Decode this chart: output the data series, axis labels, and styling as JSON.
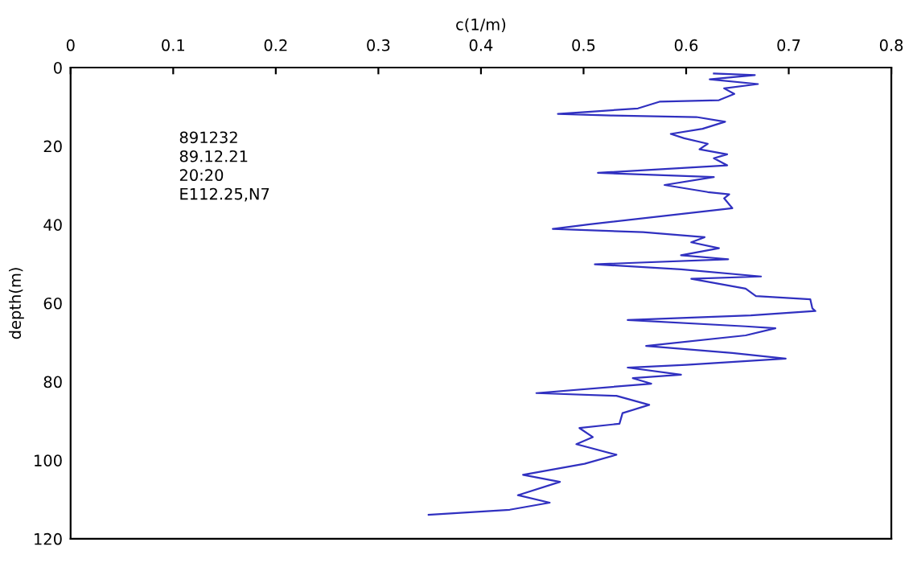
{
  "chart_data": {
    "type": "line",
    "xlabel": "c(1/m)",
    "ylabel": "depth(m)",
    "annotations": [
      "891232",
      "89.12.21",
      "20:20",
      "E112.25,N7"
    ],
    "xlim": [
      0,
      0.8
    ],
    "xticks": [
      {
        "value": 0,
        "label": "0"
      },
      0.1,
      0.2,
      0.3,
      0.4,
      0.5,
      0.6,
      0.7,
      0.8
    ],
    "ylim": [
      120,
      0
    ],
    "yticks": [
      0,
      20,
      40,
      60,
      80,
      100,
      120
    ],
    "grid": false,
    "legend": false,
    "marker": "none",
    "line_style": "solid",
    "series": [
      {
        "color": "#3030c0",
        "x": [
          0.627,
          0.667,
          0.623,
          0.67,
          0.637,
          0.647,
          0.632,
          0.574,
          0.553,
          0.475,
          0.527,
          0.61,
          0.638,
          0.616,
          0.585,
          0.598,
          0.621,
          0.613,
          0.64,
          0.627,
          0.64,
          0.514,
          0.627,
          0.579,
          0.621,
          0.642,
          0.637,
          0.645,
          0.506,
          0.47,
          0.558,
          0.618,
          0.605,
          0.632,
          0.595,
          0.641,
          0.511,
          0.595,
          0.673,
          0.605,
          0.658,
          0.668,
          0.721,
          0.723,
          0.726,
          0.663,
          0.543,
          0.658,
          0.687,
          0.658,
          0.561,
          0.645,
          0.697,
          0.6,
          0.543,
          0.595,
          0.548,
          0.566,
          0.454,
          0.532,
          0.564,
          0.538,
          0.535,
          0.496,
          0.509,
          0.493,
          0.532,
          0.501,
          0.441,
          0.477,
          0.436,
          0.467,
          0.428,
          0.349
        ],
        "values": [
          1.5,
          1.9,
          3.0,
          4.2,
          5.3,
          6.7,
          8.3,
          8.7,
          10.4,
          11.8,
          12.2,
          12.6,
          13.8,
          15.6,
          16.9,
          18.0,
          19.4,
          20.8,
          22.1,
          23.1,
          24.9,
          26.8,
          27.9,
          29.9,
          31.7,
          32.3,
          33.3,
          35.8,
          39.9,
          41.1,
          41.9,
          43.2,
          44.5,
          46.0,
          47.8,
          48.8,
          50.1,
          51.4,
          53.2,
          53.8,
          56.3,
          58.2,
          59.0,
          61.3,
          62.0,
          63.1,
          64.3,
          65.9,
          66.4,
          68.2,
          70.9,
          72.7,
          74.1,
          75.7,
          76.4,
          78.2,
          79.1,
          80.5,
          82.9,
          83.6,
          85.9,
          88.0,
          90.7,
          91.8,
          94.1,
          95.9,
          98.6,
          100.9,
          103.7,
          105.5,
          108.9,
          110.8,
          112.6,
          113.9
        ]
      }
    ]
  }
}
